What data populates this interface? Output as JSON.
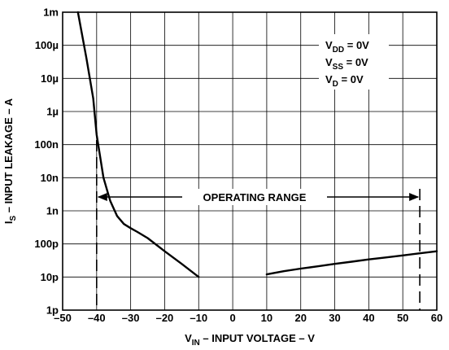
{
  "chart_data": {
    "type": "line",
    "xlabel": {
      "prefix": "V",
      "sub": "IN",
      "suffix": " – INPUT VOLTAGE – V"
    },
    "ylabel": {
      "prefix": "I",
      "sub": "S",
      "suffix": " – INPUT LEAKAGE – A"
    },
    "xlim": [
      -50,
      60
    ],
    "ylim_log10": [
      -12,
      -3
    ],
    "y_scale": "log",
    "grid": true,
    "x_ticks": [
      {
        "v": -50,
        "label": "–50"
      },
      {
        "v": -40,
        "label": "–40"
      },
      {
        "v": -30,
        "label": "–30"
      },
      {
        "v": -20,
        "label": "–20"
      },
      {
        "v": -10,
        "label": "–10"
      },
      {
        "v": 0,
        "label": "0"
      },
      {
        "v": 10,
        "label": "10"
      },
      {
        "v": 20,
        "label": "20"
      },
      {
        "v": 30,
        "label": "30"
      },
      {
        "v": 40,
        "label": "40"
      },
      {
        "v": 50,
        "label": "50"
      },
      {
        "v": 60,
        "label": "60"
      }
    ],
    "y_ticks": [
      {
        "e": -3,
        "label": "1m"
      },
      {
        "e": -4,
        "label": "100µ"
      },
      {
        "e": -5,
        "label": "10µ"
      },
      {
        "e": -6,
        "label": "1µ"
      },
      {
        "e": -7,
        "label": "100n"
      },
      {
        "e": -8,
        "label": "10n"
      },
      {
        "e": -9,
        "label": "1n"
      },
      {
        "e": -10,
        "label": "100p"
      },
      {
        "e": -11,
        "label": "10p"
      },
      {
        "e": -12,
        "label": "1p"
      }
    ],
    "conditions": [
      {
        "prefix": "V",
        "sub": "DD",
        "suffix": " = 0V"
      },
      {
        "prefix": "V",
        "sub": "SS",
        "suffix": " = 0V"
      },
      {
        "prefix": "V",
        "sub": "D",
        "suffix": " = 0V"
      }
    ],
    "operating_range": {
      "label": "OPERATING RANGE",
      "from": -40,
      "to": 55
    },
    "series": [
      {
        "segment": "negative",
        "points": [
          [
            -45.5,
            0.001
          ],
          [
            -43,
            4e-05
          ],
          [
            -41,
            2.5e-06
          ],
          [
            -40,
            2e-07
          ],
          [
            -38,
            1e-08
          ],
          [
            -36,
            2e-09
          ],
          [
            -34,
            7e-10
          ],
          [
            -32,
            4e-10
          ],
          [
            -30,
            3e-10
          ],
          [
            -28,
            2.3e-10
          ],
          [
            -25,
            1.5e-10
          ],
          [
            -20,
            6e-11
          ],
          [
            -15,
            2.5e-11
          ],
          [
            -10,
            1e-11
          ]
        ]
      },
      {
        "segment": "positive",
        "points": [
          [
            10,
            1.2e-11
          ],
          [
            15,
            1.5e-11
          ],
          [
            20,
            1.8e-11
          ],
          [
            25,
            2.1e-11
          ],
          [
            30,
            2.5e-11
          ],
          [
            35,
            2.9e-11
          ],
          [
            40,
            3.4e-11
          ],
          [
            45,
            3.9e-11
          ],
          [
            50,
            4.5e-11
          ],
          [
            55,
            5.2e-11
          ],
          [
            60,
            6e-11
          ]
        ]
      }
    ]
  }
}
